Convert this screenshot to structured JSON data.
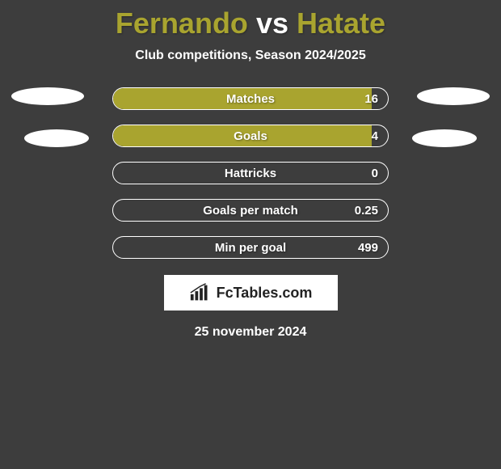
{
  "title": {
    "player1": "Fernando",
    "vs": "vs",
    "player2": "Hatate"
  },
  "subtitle": "Club competitions, Season 2024/2025",
  "colors": {
    "accent": "#a9a42f",
    "background": "#3d3d3d",
    "bar_border": "#ffffff",
    "text": "#ffffff"
  },
  "bars": [
    {
      "label": "Matches",
      "value": "16",
      "fill_pct": 94
    },
    {
      "label": "Goals",
      "value": "4",
      "fill_pct": 94
    },
    {
      "label": "Hattricks",
      "value": "0",
      "fill_pct": 0
    },
    {
      "label": "Goals per match",
      "value": "0.25",
      "fill_pct": 0
    },
    {
      "label": "Min per goal",
      "value": "499",
      "fill_pct": 0
    }
  ],
  "logo": {
    "text": "FcTables.com"
  },
  "date": "25 november 2024"
}
